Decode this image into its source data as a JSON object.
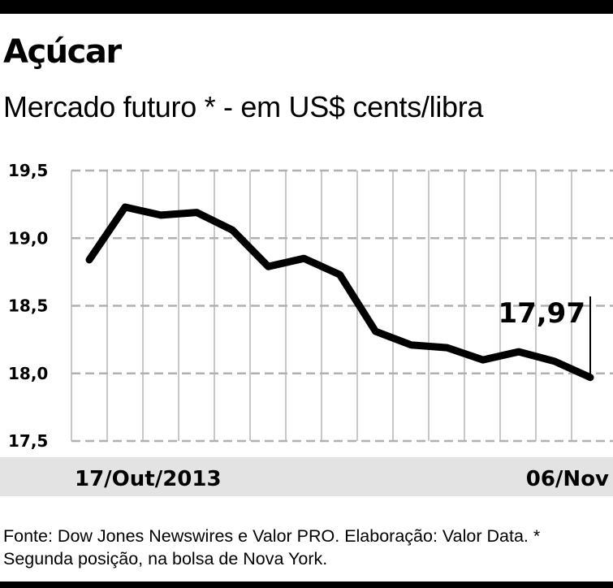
{
  "header": {
    "title": "Açúcar",
    "subtitle": "Mercado futuro * - em US$ cents/libra"
  },
  "chart_data": {
    "type": "line",
    "title": "Açúcar",
    "subtitle": "Mercado futuro * - em US$ cents/libra",
    "x_start_label": "17/Out/2013",
    "x_end_label": "06/Nov",
    "ylim": [
      17.5,
      19.5
    ],
    "y_ticks": [
      "19,5",
      "19,0",
      "18,5",
      "18,0",
      "17,5"
    ],
    "y_tick_values": [
      19.5,
      19.0,
      18.5,
      18.0,
      17.5
    ],
    "grid": true,
    "series": [
      {
        "values": [
          18.84,
          19.23,
          19.17,
          19.19,
          19.06,
          18.79,
          18.85,
          18.73,
          18.31,
          18.21,
          18.19,
          18.1,
          18.16,
          18.09,
          17.97
        ]
      }
    ],
    "last_value_label": "17,97",
    "line_color": "#000000",
    "band_color": "#e3e3e3"
  },
  "footer": {
    "source": "Fonte: Dow Jones Newswires e Valor PRO. Elaboração: Valor Data. * Segunda posição, na bolsa de Nova York."
  }
}
